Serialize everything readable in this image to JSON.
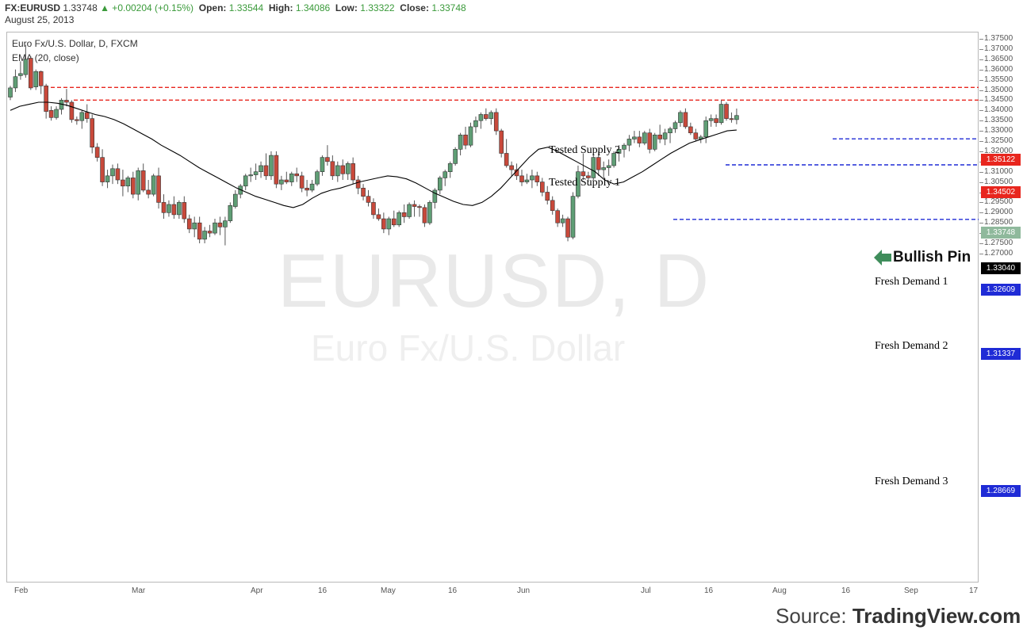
{
  "header": {
    "symbol": "FX:EURUSD",
    "last": "1.33748",
    "change": "▲ +0.00204 (+0.15%)",
    "open_label": "Open:",
    "open": "1.33544",
    "high_label": "High:",
    "high": "1.34086",
    "low_label": "Low:",
    "low": "1.33322",
    "close_label": "Close:",
    "close": "1.33748",
    "date": "August 25, 2013"
  },
  "legend": {
    "title": "Euro Fx/U.S. Dollar, D, FXCM",
    "indicator": "EMA (20, close)"
  },
  "watermark": {
    "symbol": "EURUSD, D",
    "name": "Euro Fx/U.S. Dollar"
  },
  "annotation": {
    "bullish_pin": "Bullish Pin"
  },
  "source": {
    "prefix": "Source:",
    "brand": "TradingView.com"
  },
  "colors": {
    "up": "#5f9e75",
    "down": "#c8493b",
    "supply": "#e8261e",
    "demand": "#1f2bd6",
    "ema": "#000000"
  },
  "price_labels": {
    "supply2": "1.35122",
    "supply1": "1.34502",
    "last": "1.33748",
    "ema": "1.33040",
    "demand1": "1.32609",
    "demand2": "1.31337",
    "demand3": "1.28669"
  },
  "chart_data": {
    "type": "candlestick",
    "ylim": [
      1.27,
      1.3775
    ],
    "y_ticks": [
      "1.37500",
      "1.37000",
      "1.36500",
      "1.36000",
      "1.35500",
      "1.35000",
      "1.34500",
      "1.34000",
      "1.33500",
      "1.33000",
      "1.32500",
      "1.32000",
      "1.31500",
      "1.31000",
      "1.30500",
      "1.30000",
      "1.29500",
      "1.29000",
      "1.28500",
      "1.28000",
      "1.27500",
      "1.27000"
    ],
    "x_ticks": [
      "Feb",
      "Mar",
      "Apr",
      "16",
      "May",
      "16",
      "Jun",
      "Jul",
      "16",
      "Aug",
      "16",
      "Sep",
      "17"
    ],
    "candles": [
      [
        1.3465,
        1.352,
        1.345,
        1.351
      ],
      [
        1.351,
        1.36,
        1.349,
        1.3565
      ],
      [
        1.357,
        1.364,
        1.355,
        1.358
      ],
      [
        1.3575,
        1.372,
        1.356,
        1.365
      ],
      [
        1.3655,
        1.3665,
        1.35,
        1.351
      ],
      [
        1.3515,
        1.36,
        1.35,
        1.359
      ],
      [
        1.359,
        1.3595,
        1.348,
        1.352
      ],
      [
        1.352,
        1.353,
        1.336,
        1.3395
      ],
      [
        1.34,
        1.342,
        1.335,
        1.3365
      ],
      [
        1.3365,
        1.342,
        1.3355,
        1.3405
      ],
      [
        1.3405,
        1.346,
        1.338,
        1.345
      ],
      [
        1.345,
        1.3505,
        1.342,
        1.344
      ],
      [
        1.344,
        1.345,
        1.334,
        1.3355
      ],
      [
        1.3355,
        1.337,
        1.333,
        1.335
      ],
      [
        1.335,
        1.34,
        1.331,
        1.339
      ],
      [
        1.339,
        1.343,
        1.334,
        1.336
      ],
      [
        1.336,
        1.338,
        1.319,
        1.322
      ],
      [
        1.322,
        1.324,
        1.315,
        1.317
      ],
      [
        1.317,
        1.321,
        1.303,
        1.305
      ],
      [
        1.305,
        1.311,
        1.302,
        1.308
      ],
      [
        1.308,
        1.3135,
        1.304,
        1.3115
      ],
      [
        1.3115,
        1.314,
        1.304,
        1.306
      ],
      [
        1.306,
        1.311,
        1.298,
        1.303
      ],
      [
        1.303,
        1.308,
        1.3,
        1.307
      ],
      [
        1.307,
        1.31,
        1.297,
        1.299
      ],
      [
        1.299,
        1.312,
        1.296,
        1.3105
      ],
      [
        1.3105,
        1.314,
        1.3,
        1.301
      ],
      [
        1.301,
        1.306,
        1.297,
        1.299
      ],
      [
        1.299,
        1.309,
        1.298,
        1.308
      ],
      [
        1.308,
        1.312,
        1.292,
        1.295
      ],
      [
        1.295,
        1.299,
        1.287,
        1.29
      ],
      [
        1.29,
        1.296,
        1.288,
        1.294
      ],
      [
        1.294,
        1.298,
        1.287,
        1.289
      ],
      [
        1.289,
        1.296,
        1.287,
        1.295
      ],
      [
        1.295,
        1.298,
        1.285,
        1.287
      ],
      [
        1.287,
        1.289,
        1.28,
        1.282
      ],
      [
        1.282,
        1.288,
        1.278,
        1.285
      ],
      [
        1.285,
        1.288,
        1.275,
        1.277
      ],
      [
        1.277,
        1.283,
        1.275,
        1.281
      ],
      [
        1.281,
        1.284,
        1.278,
        1.28
      ],
      [
        1.28,
        1.287,
        1.279,
        1.285
      ],
      [
        1.285,
        1.288,
        1.279,
        1.283
      ],
      [
        1.283,
        1.288,
        1.274,
        1.286
      ],
      [
        1.286,
        1.295,
        1.285,
        1.2935
      ],
      [
        1.293,
        1.301,
        1.292,
        1.299
      ],
      [
        1.299,
        1.304,
        1.297,
        1.303
      ],
      [
        1.303,
        1.309,
        1.301,
        1.308
      ],
      [
        1.308,
        1.312,
        1.305,
        1.3085
      ],
      [
        1.3085,
        1.314,
        1.306,
        1.31
      ],
      [
        1.31,
        1.315,
        1.307,
        1.313
      ],
      [
        1.313,
        1.319,
        1.306,
        1.308
      ],
      [
        1.308,
        1.32,
        1.306,
        1.318
      ],
      [
        1.318,
        1.32,
        1.302,
        1.304
      ],
      [
        1.304,
        1.308,
        1.301,
        1.306
      ],
      [
        1.306,
        1.31,
        1.304,
        1.305
      ],
      [
        1.305,
        1.31,
        1.303,
        1.309
      ],
      [
        1.309,
        1.312,
        1.305,
        1.308
      ],
      [
        1.308,
        1.31,
        1.3,
        1.302
      ],
      [
        1.302,
        1.306,
        1.298,
        1.301
      ],
      [
        1.301,
        1.306,
        1.3,
        1.304
      ],
      [
        1.304,
        1.311,
        1.303,
        1.31
      ],
      [
        1.31,
        1.318,
        1.308,
        1.317
      ],
      [
        1.317,
        1.323,
        1.313,
        1.315
      ],
      [
        1.315,
        1.318,
        1.306,
        1.308
      ],
      [
        1.308,
        1.315,
        1.305,
        1.313
      ],
      [
        1.313,
        1.316,
        1.306,
        1.309
      ],
      [
        1.309,
        1.315,
        1.306,
        1.314
      ],
      [
        1.314,
        1.317,
        1.304,
        1.306
      ],
      [
        1.306,
        1.308,
        1.299,
        1.302
      ],
      [
        1.302,
        1.304,
        1.296,
        1.298
      ],
      [
        1.298,
        1.301,
        1.293,
        1.295
      ],
      [
        1.295,
        1.297,
        1.287,
        1.289
      ],
      [
        1.289,
        1.292,
        1.286,
        1.287
      ],
      [
        1.287,
        1.29,
        1.28,
        1.282
      ],
      [
        1.282,
        1.288,
        1.279,
        1.287
      ],
      [
        1.287,
        1.291,
        1.283,
        1.284
      ],
      [
        1.284,
        1.291,
        1.283,
        1.29
      ],
      [
        1.29,
        1.294,
        1.285,
        1.288
      ],
      [
        1.288,
        1.295,
        1.287,
        1.294
      ],
      [
        1.294,
        1.296,
        1.288,
        1.293
      ],
      [
        1.293,
        1.294,
        1.288,
        1.2925
      ],
      [
        1.2925,
        1.294,
        1.283,
        1.285
      ],
      [
        1.285,
        1.296,
        1.284,
        1.295
      ],
      [
        1.295,
        1.302,
        1.292,
        1.301
      ],
      [
        1.301,
        1.308,
        1.299,
        1.307
      ],
      [
        1.307,
        1.311,
        1.303,
        1.31
      ],
      [
        1.31,
        1.315,
        1.307,
        1.314
      ],
      [
        1.314,
        1.322,
        1.313,
        1.321
      ],
      [
        1.321,
        1.329,
        1.318,
        1.328
      ],
      [
        1.328,
        1.332,
        1.321,
        1.323
      ],
      [
        1.323,
        1.334,
        1.322,
        1.332
      ],
      [
        1.332,
        1.337,
        1.329,
        1.335
      ],
      [
        1.335,
        1.339,
        1.331,
        1.338
      ],
      [
        1.338,
        1.341,
        1.335,
        1.336
      ],
      [
        1.336,
        1.34,
        1.333,
        1.339
      ],
      [
        1.339,
        1.341,
        1.328,
        1.33
      ],
      [
        1.33,
        1.331,
        1.317,
        1.319
      ],
      [
        1.319,
        1.326,
        1.312,
        1.313
      ],
      [
        1.313,
        1.315,
        1.308,
        1.311
      ],
      [
        1.311,
        1.314,
        1.306,
        1.308
      ],
      [
        1.308,
        1.311,
        1.303,
        1.305
      ],
      [
        1.305,
        1.309,
        1.304,
        1.306
      ],
      [
        1.306,
        1.311,
        1.302,
        1.308
      ],
      [
        1.308,
        1.31,
        1.303,
        1.305
      ],
      [
        1.305,
        1.307,
        1.298,
        1.3
      ],
      [
        1.3,
        1.303,
        1.294,
        1.296
      ],
      [
        1.296,
        1.298,
        1.289,
        1.291
      ],
      [
        1.291,
        1.292,
        1.283,
        1.285
      ],
      [
        1.285,
        1.289,
        1.283,
        1.287
      ],
      [
        1.287,
        1.288,
        1.276,
        1.278
      ],
      [
        1.278,
        1.3,
        1.277,
        1.298
      ],
      [
        1.298,
        1.313,
        1.297,
        1.31
      ],
      [
        1.31,
        1.319,
        1.306,
        1.308
      ],
      [
        1.308,
        1.31,
        1.305,
        1.307
      ],
      [
        1.307,
        1.318,
        1.306,
        1.317
      ],
      [
        1.317,
        1.32,
        1.308,
        1.311
      ],
      [
        1.311,
        1.315,
        1.307,
        1.312
      ],
      [
        1.312,
        1.316,
        1.308,
        1.313
      ],
      [
        1.313,
        1.32,
        1.312,
        1.319
      ],
      [
        1.319,
        1.323,
        1.315,
        1.321
      ],
      [
        1.321,
        1.324,
        1.317,
        1.323
      ],
      [
        1.323,
        1.328,
        1.32,
        1.326
      ],
      [
        1.326,
        1.33,
        1.324,
        1.327
      ],
      [
        1.327,
        1.33,
        1.322,
        1.324
      ],
      [
        1.324,
        1.33,
        1.323,
        1.329
      ],
      [
        1.329,
        1.331,
        1.319,
        1.321
      ],
      [
        1.321,
        1.329,
        1.32,
        1.328
      ],
      [
        1.328,
        1.333,
        1.324,
        1.326
      ],
      [
        1.326,
        1.331,
        1.323,
        1.329
      ],
      [
        1.329,
        1.332,
        1.324,
        1.331
      ],
      [
        1.331,
        1.335,
        1.329,
        1.334
      ],
      [
        1.334,
        1.34,
        1.332,
        1.339
      ],
      [
        1.339,
        1.341,
        1.331,
        1.332
      ],
      [
        1.332,
        1.334,
        1.328,
        1.329
      ],
      [
        1.329,
        1.331,
        1.325,
        1.326
      ],
      [
        1.326,
        1.328,
        1.324,
        1.327
      ],
      [
        1.327,
        1.337,
        1.324,
        1.335
      ],
      [
        1.335,
        1.338,
        1.332,
        1.336
      ],
      [
        1.336,
        1.338,
        1.332,
        1.334
      ],
      [
        1.334,
        1.345,
        1.333,
        1.343
      ],
      [
        1.343,
        1.344,
        1.335,
        1.336
      ],
      [
        1.336,
        1.339,
        1.334,
        1.3355
      ],
      [
        1.3355,
        1.3409,
        1.3332,
        1.3375
      ]
    ],
    "ema": [
      1.34,
      1.342,
      1.343,
      1.344,
      1.344,
      1.3435,
      1.3425,
      1.341,
      1.3395,
      1.338,
      1.337,
      1.3355,
      1.3335,
      1.331,
      1.3285,
      1.326,
      1.323,
      1.3205,
      1.318,
      1.315,
      1.312,
      1.3095,
      1.307,
      1.3045,
      1.302,
      1.3,
      1.298,
      1.2965,
      1.295,
      1.2935,
      1.2925,
      1.294,
      1.297,
      1.2995,
      1.301,
      1.302,
      1.3035,
      1.305,
      1.306,
      1.307,
      1.308,
      1.3075,
      1.3065,
      1.3045,
      1.302,
      1.2995,
      1.2975,
      1.2955,
      1.294,
      1.2935,
      1.295,
      1.298,
      1.302,
      1.307,
      1.312,
      1.317,
      1.321,
      1.322,
      1.32,
      1.3175,
      1.315,
      1.3125,
      1.31,
      1.306,
      1.304,
      1.305,
      1.3075,
      1.31,
      1.313,
      1.316,
      1.319,
      1.3215,
      1.324,
      1.3255,
      1.327,
      1.3285,
      1.33,
      1.3304
    ]
  }
}
